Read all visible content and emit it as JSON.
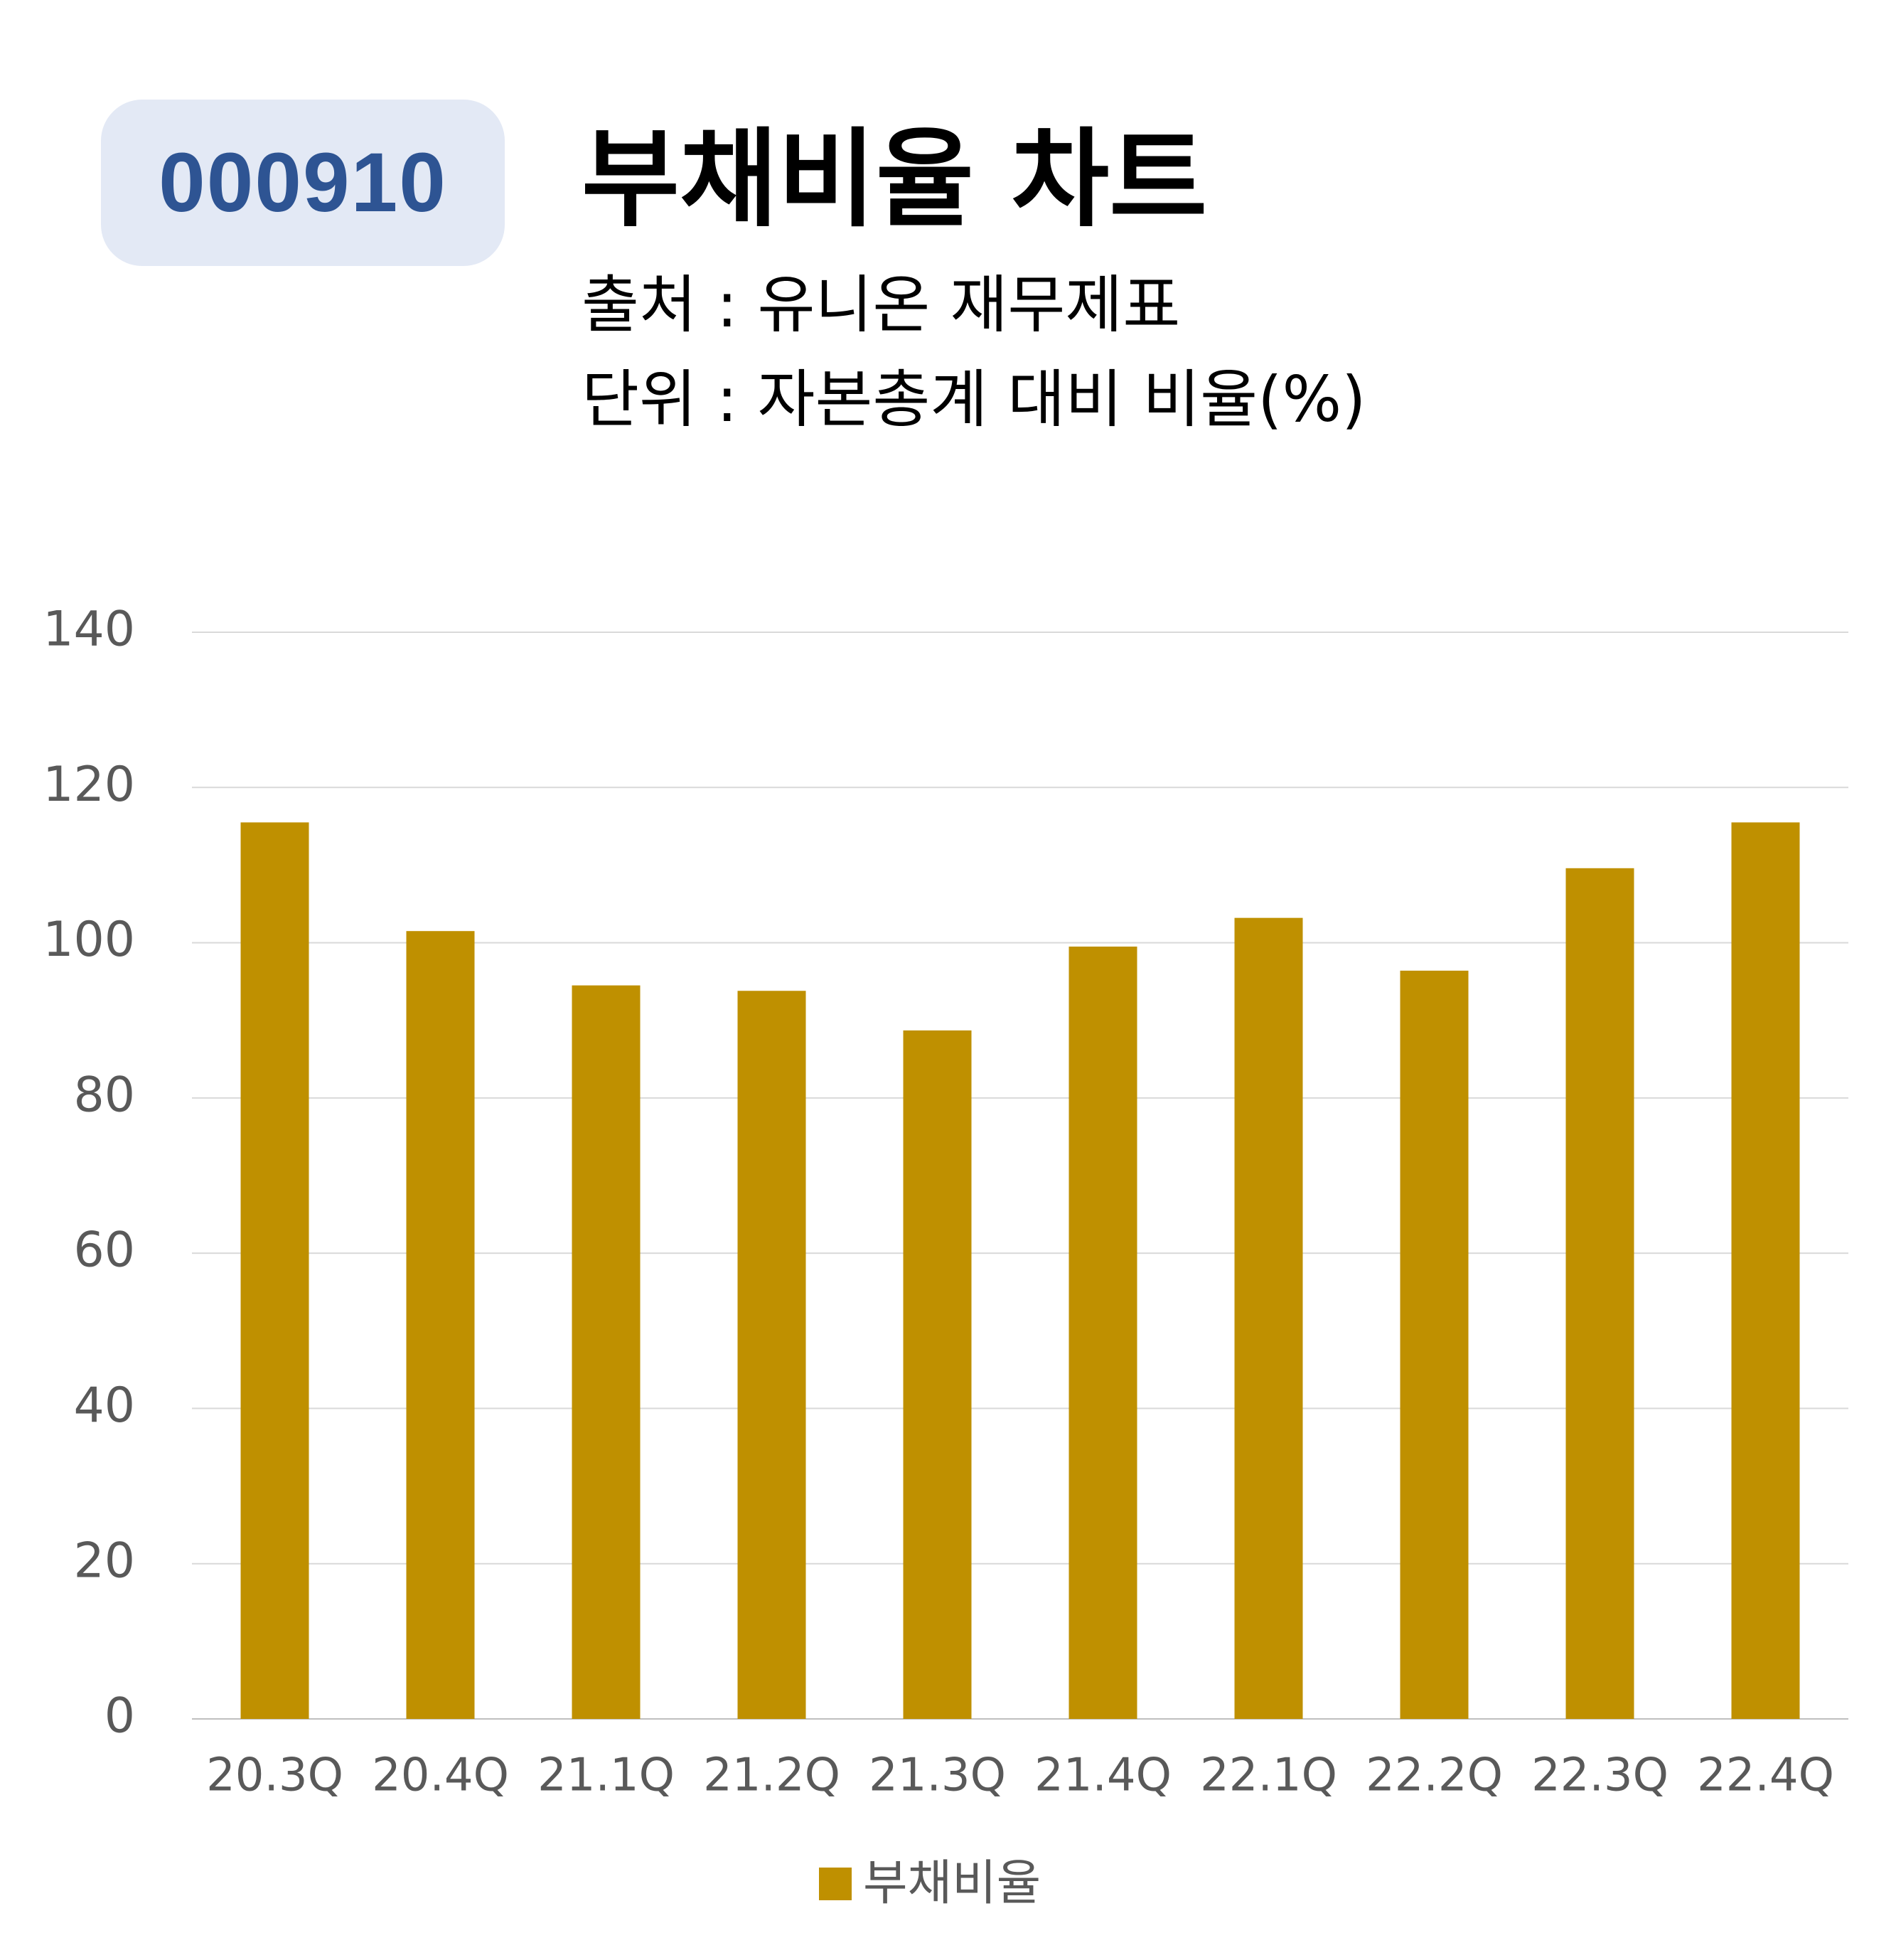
{
  "badge": {
    "code": "000910"
  },
  "header": {
    "title": "부채비율 차트",
    "source": "출처 : 유니온 재무제표",
    "unit": "단위 : 자본총계 대비 비율(%)"
  },
  "colors": {
    "bar": "#bf9000",
    "badge_bg": "#e3e9f5",
    "badge_text": "#2e5493",
    "grid": "#d9d9d9",
    "tick": "#595959"
  },
  "chart_data": {
    "type": "bar",
    "categories": [
      "20.3Q",
      "20.4Q",
      "21.1Q",
      "21.2Q",
      "21.3Q",
      "21.4Q",
      "22.1Q",
      "22.2Q",
      "22.3Q",
      "22.4Q"
    ],
    "series": [
      {
        "name": "부채비율",
        "values": [
          115.5,
          101.5,
          94.5,
          93.8,
          88.7,
          99.5,
          103.2,
          96.4,
          109.6,
          115.5
        ]
      }
    ],
    "ylim": [
      0,
      140
    ],
    "yticks": [
      "0",
      "20",
      "40",
      "60",
      "80",
      "100",
      "120",
      "140"
    ],
    "grid": true,
    "legend": "bottom"
  }
}
